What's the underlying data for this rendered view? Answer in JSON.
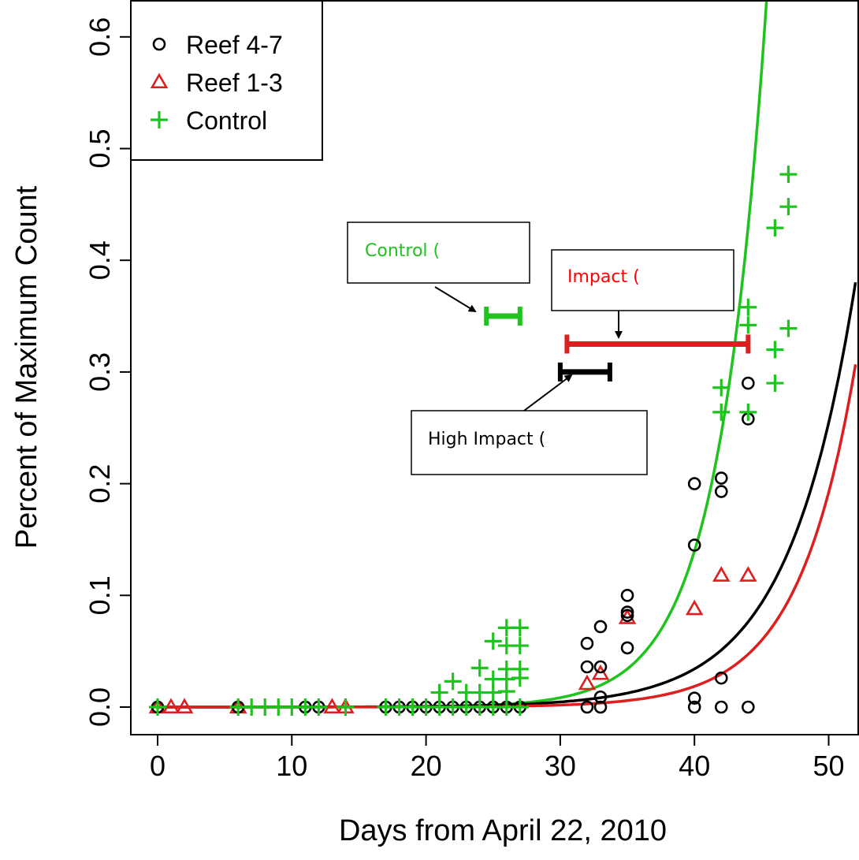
{
  "chart_data": {
    "type": "scatter",
    "xlabel": "Days from April 22, 2010",
    "ylabel": "Percent of Maximum Count",
    "xlim": [
      -2.2,
      52.0
    ],
    "ylim": [
      -0.025,
      0.625
    ],
    "xticks": [
      "0",
      "10",
      "20",
      "30",
      "40",
      "50"
    ],
    "yticks": [
      "0.0",
      "0.1",
      "0.2",
      "0.3",
      "0.4",
      "0.5",
      "0.6"
    ],
    "legend": {
      "position": "top-left"
    },
    "colors": {
      "reef47": "#000000",
      "reef13": "#dd1f1f",
      "control": "#1ec31e"
    },
    "series": [
      {
        "name": "Reef 4-7",
        "marker": "circle",
        "color": "#000000",
        "points": [
          [
            0,
            0
          ],
          [
            6,
            0
          ],
          [
            11,
            0
          ],
          [
            12,
            0
          ],
          [
            17,
            0
          ],
          [
            18,
            0
          ],
          [
            19,
            0
          ],
          [
            20,
            0
          ],
          [
            21,
            0
          ],
          [
            22,
            0
          ],
          [
            23,
            0
          ],
          [
            24,
            0
          ],
          [
            25,
            0
          ],
          [
            26,
            0
          ],
          [
            27,
            0
          ],
          [
            32,
            0.057
          ],
          [
            32,
            0.036
          ],
          [
            32,
            0
          ],
          [
            33,
            0.072
          ],
          [
            33,
            0.036
          ],
          [
            33,
            0.009
          ],
          [
            33,
            0
          ],
          [
            35,
            0.1
          ],
          [
            35,
            0.085
          ],
          [
            35,
            0.082
          ],
          [
            35,
            0.053
          ],
          [
            40,
            0.2
          ],
          [
            40,
            0.145
          ],
          [
            40,
            0.008
          ],
          [
            40,
            0
          ],
          [
            42,
            0.205
          ],
          [
            42,
            0.193
          ],
          [
            42,
            0.026
          ],
          [
            42,
            0
          ],
          [
            44,
            0.29
          ],
          [
            44,
            0.258
          ],
          [
            44,
            0
          ]
        ]
      },
      {
        "name": "Reef 1-3",
        "marker": "triangle",
        "color": "#dd1f1f",
        "points": [
          [
            0,
            0
          ],
          [
            1,
            0
          ],
          [
            2,
            0
          ],
          [
            6,
            0
          ],
          [
            13,
            0
          ],
          [
            14,
            0
          ],
          [
            32,
            0.021
          ],
          [
            33,
            0.03
          ],
          [
            35,
            0.08
          ],
          [
            40,
            0.088
          ],
          [
            42,
            0.118
          ],
          [
            44,
            0.118
          ]
        ]
      },
      {
        "name": "Control",
        "marker": "plus",
        "color": "#1ec31e",
        "points": [
          [
            0,
            0
          ],
          [
            6,
            0
          ],
          [
            7,
            0
          ],
          [
            8,
            0
          ],
          [
            9,
            0
          ],
          [
            10,
            0
          ],
          [
            11,
            0
          ],
          [
            12,
            0
          ],
          [
            14,
            0
          ],
          [
            17,
            0
          ],
          [
            18,
            0
          ],
          [
            19,
            0
          ],
          [
            20,
            0
          ],
          [
            21,
            0
          ],
          [
            21,
            0.013
          ],
          [
            22,
            0
          ],
          [
            22,
            0.023
          ],
          [
            23,
            0
          ],
          [
            23,
            0.013
          ],
          [
            24,
            0
          ],
          [
            24,
            0.013
          ],
          [
            24,
            0.035
          ],
          [
            25,
            0
          ],
          [
            25,
            0.013
          ],
          [
            25,
            0.025
          ],
          [
            25,
            0.059
          ],
          [
            26,
            0
          ],
          [
            26,
            0.014
          ],
          [
            26,
            0.025
          ],
          [
            26,
            0.034
          ],
          [
            26,
            0.055
          ],
          [
            26,
            0.071
          ],
          [
            27,
            0
          ],
          [
            27,
            0.026
          ],
          [
            27,
            0.034
          ],
          [
            27,
            0.055
          ],
          [
            27,
            0.071
          ],
          [
            42,
            0.286
          ],
          [
            42,
            0.264
          ],
          [
            44,
            0.358
          ],
          [
            44,
            0.342
          ],
          [
            44,
            0.264
          ],
          [
            46,
            0.429
          ],
          [
            46,
            0.32
          ],
          [
            46,
            0.29
          ],
          [
            47,
            0.477
          ],
          [
            47,
            0.448
          ],
          [
            47,
            0.339
          ]
        ]
      }
    ],
    "fit_lines": [
      {
        "name": "Control",
        "color": "#1ec31e",
        "model": "exponential",
        "a": 1.82e-06,
        "b": 0.2812
      },
      {
        "name": "Reef 4-7",
        "color": "#000000",
        "model": "exponential",
        "a": 1.11e-05,
        "b": 0.2008
      },
      {
        "name": "Reef 1-3",
        "color": "#dd1f1f",
        "model": "exponential",
        "a": 1.61e-06,
        "b": 0.2338
      }
    ],
    "intervals": [
      {
        "name": "Control",
        "color": "#1ec31e",
        "x": [
          24.5,
          27.0
        ],
        "y": 0.35
      },
      {
        "name": "Impact",
        "color": "#dd1f1f",
        "x": [
          30.5,
          44.0
        ],
        "y": 0.325
      },
      {
        "name": "High Impact",
        "color": "#000000",
        "x": [
          30.0,
          33.7
        ],
        "y": 0.3
      }
    ],
    "annotations": [
      {
        "text": "Control (",
        "color": "#1ec31e",
        "points_to": [
          24.5,
          0.35
        ]
      },
      {
        "text": "Impact (",
        "color": "#ff0000",
        "points_to": [
          34.5,
          0.325
        ]
      },
      {
        "text": "High Impact (",
        "color": "#000000",
        "points_to": [
          30.5,
          0.3
        ]
      }
    ]
  }
}
